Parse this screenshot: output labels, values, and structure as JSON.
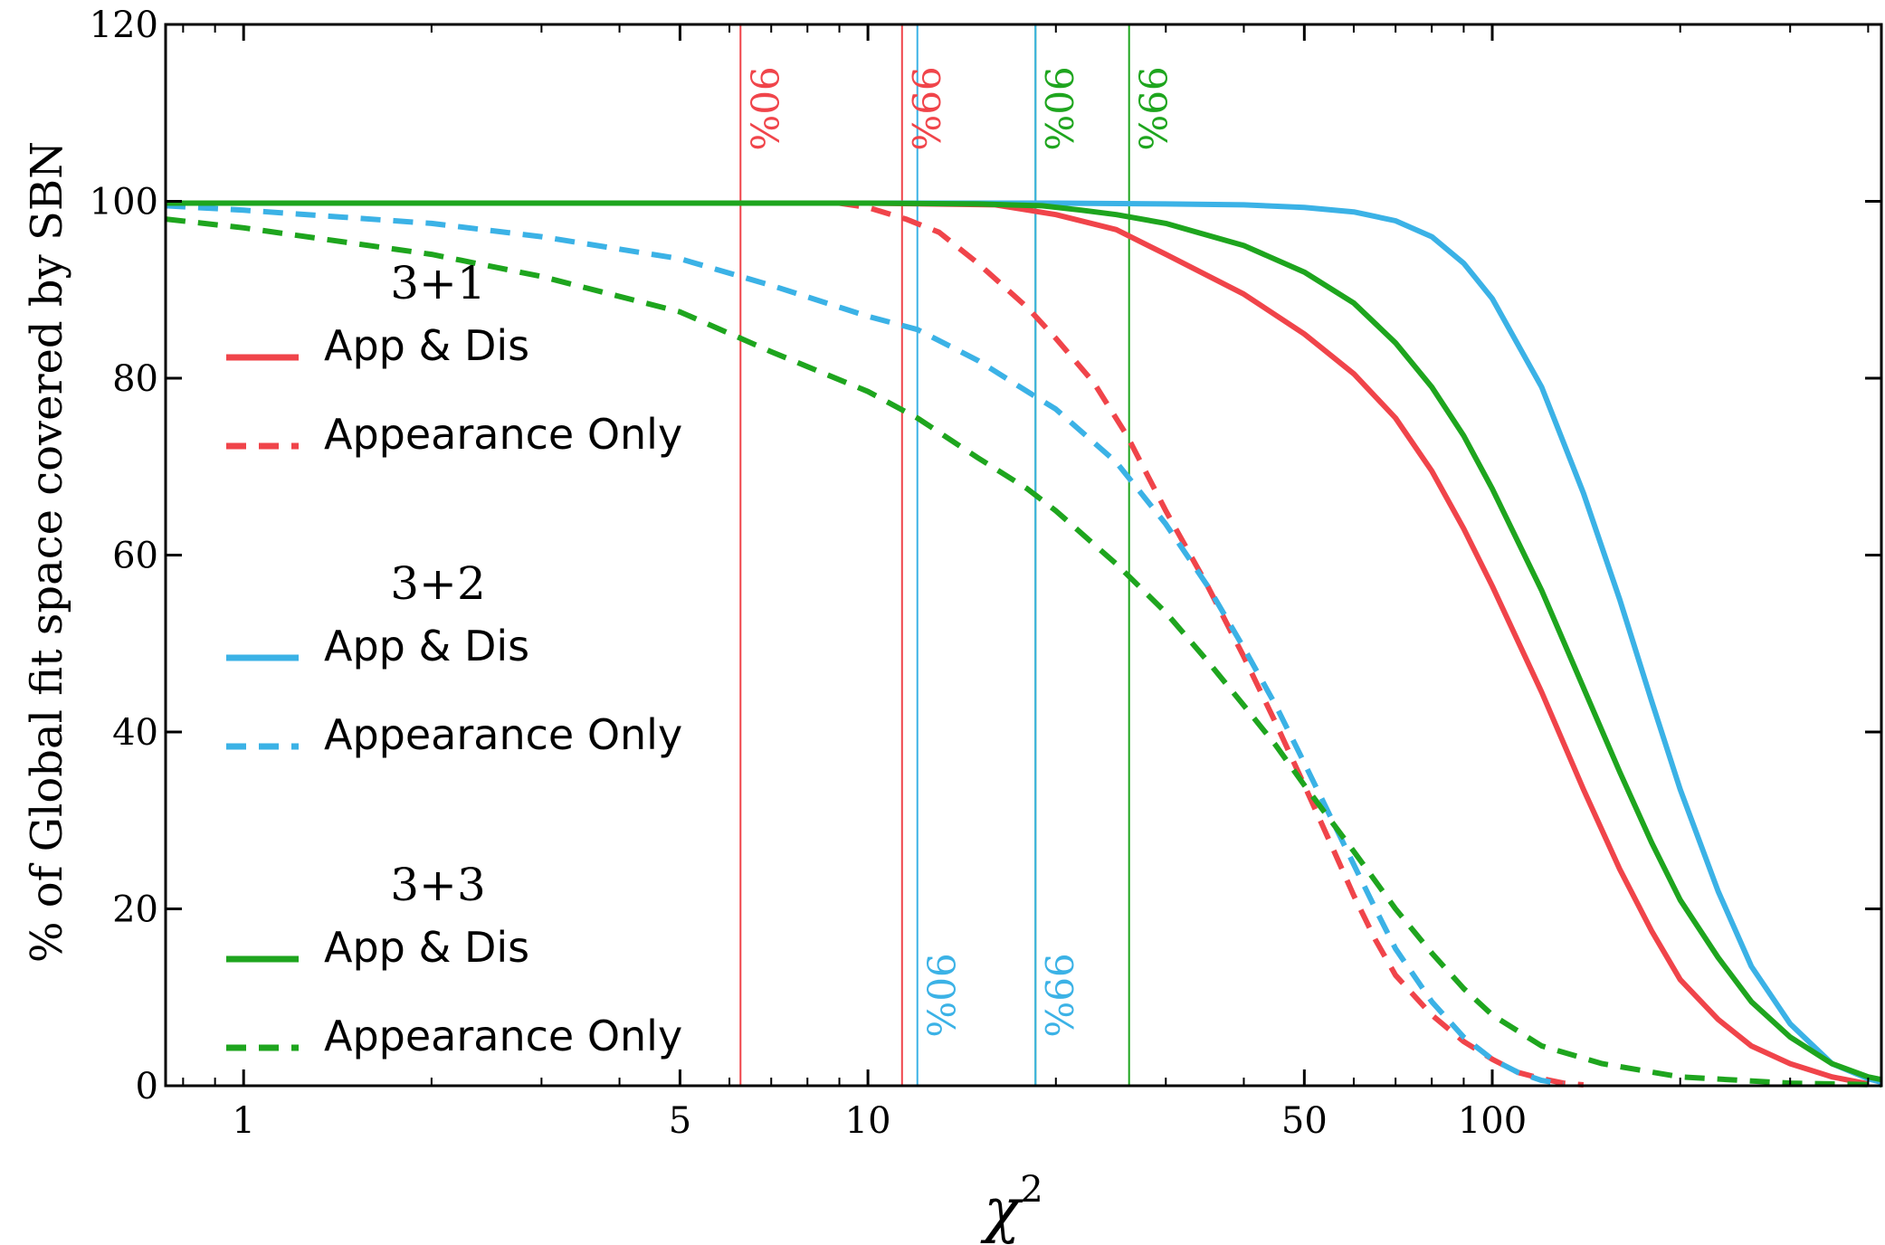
{
  "chart_data": {
    "type": "line",
    "xlabel": "χ",
    "xlabel_superscript": "2",
    "ylabel": "% of Global fit space covered by SBN",
    "xscale": "log",
    "xlim": [
      0.75,
      420
    ],
    "ylim": [
      0,
      120
    ],
    "x_ticks": [
      {
        "value": 1,
        "label": "1"
      },
      {
        "value": 5,
        "label": "5"
      },
      {
        "value": 10,
        "label": "10"
      },
      {
        "value": 50,
        "label": "50"
      },
      {
        "value": 100,
        "label": "100"
      }
    ],
    "y_ticks": [
      {
        "value": 0,
        "label": "0"
      },
      {
        "value": 20,
        "label": "20"
      },
      {
        "value": 40,
        "label": "40"
      },
      {
        "value": 60,
        "label": "60"
      },
      {
        "value": 80,
        "label": "80"
      },
      {
        "value": 100,
        "label": "100"
      },
      {
        "value": 120,
        "label": "120"
      }
    ],
    "colors": {
      "red": "#f0444a",
      "blue": "#3bb2e6",
      "green": "#1ea51e"
    },
    "series": [
      {
        "name": "App & Dis",
        "group": "3+1",
        "color": "red",
        "dash": "solid",
        "points": [
          [
            0.75,
            99.8
          ],
          [
            5,
            99.8
          ],
          [
            10,
            99.8
          ],
          [
            16,
            99.6
          ],
          [
            20,
            98.5
          ],
          [
            25,
            96.8
          ],
          [
            30,
            94.0
          ],
          [
            40,
            89.5
          ],
          [
            50,
            85.0
          ],
          [
            60,
            80.5
          ],
          [
            70,
            75.5
          ],
          [
            80,
            69.5
          ],
          [
            90,
            63.0
          ],
          [
            100,
            56.5
          ],
          [
            120,
            44.5
          ],
          [
            140,
            33.5
          ],
          [
            160,
            24.5
          ],
          [
            180,
            17.5
          ],
          [
            200,
            12.0
          ],
          [
            230,
            7.5
          ],
          [
            260,
            4.5
          ],
          [
            300,
            2.5
          ],
          [
            350,
            1.0
          ],
          [
            400,
            0.2
          ]
        ]
      },
      {
        "name": "Appearance Only",
        "group": "3+1",
        "color": "red",
        "dash": "dashed",
        "points": [
          [
            9,
            99.8
          ],
          [
            10,
            99.3
          ],
          [
            11.5,
            98.0
          ],
          [
            13,
            96.5
          ],
          [
            15,
            93.0
          ],
          [
            18,
            88.0
          ],
          [
            20,
            84.5
          ],
          [
            23,
            79.5
          ],
          [
            26,
            73.5
          ],
          [
            30,
            65.0
          ],
          [
            35,
            56.5
          ],
          [
            40,
            48.5
          ],
          [
            45,
            41.0
          ],
          [
            50,
            34.0
          ],
          [
            55,
            27.5
          ],
          [
            60,
            21.5
          ],
          [
            65,
            16.5
          ],
          [
            70,
            12.5
          ],
          [
            80,
            8.0
          ],
          [
            90,
            5.0
          ],
          [
            100,
            3.0
          ],
          [
            110,
            1.5
          ],
          [
            120,
            0.8
          ],
          [
            130,
            0.3
          ],
          [
            140,
            0.1
          ]
        ]
      },
      {
        "name": "App & Dis",
        "group": "3+2",
        "color": "blue",
        "dash": "solid",
        "points": [
          [
            0.75,
            99.8
          ],
          [
            10,
            99.8
          ],
          [
            20,
            99.8
          ],
          [
            30,
            99.7
          ],
          [
            40,
            99.6
          ],
          [
            50,
            99.3
          ],
          [
            60,
            98.8
          ],
          [
            70,
            97.8
          ],
          [
            80,
            96.0
          ],
          [
            90,
            93.0
          ],
          [
            100,
            89.0
          ],
          [
            120,
            79.0
          ],
          [
            140,
            67.0
          ],
          [
            160,
            55.0
          ],
          [
            180,
            43.5
          ],
          [
            200,
            33.5
          ],
          [
            230,
            22.0
          ],
          [
            260,
            13.5
          ],
          [
            300,
            7.0
          ],
          [
            350,
            2.5
          ],
          [
            400,
            0.8
          ],
          [
            420,
            0.4
          ]
        ]
      },
      {
        "name": "Appearance Only",
        "group": "3+2",
        "color": "blue",
        "dash": "dashed",
        "points": [
          [
            0.75,
            99.5
          ],
          [
            1,
            99.0
          ],
          [
            2,
            97.5
          ],
          [
            3,
            96.0
          ],
          [
            5,
            93.5
          ],
          [
            7,
            90.5
          ],
          [
            10,
            87.0
          ],
          [
            12,
            85.5
          ],
          [
            15,
            82.0
          ],
          [
            18,
            78.5
          ],
          [
            20,
            76.5
          ],
          [
            25,
            70.5
          ],
          [
            30,
            63.5
          ],
          [
            35,
            56.5
          ],
          [
            40,
            49.5
          ],
          [
            45,
            43.0
          ],
          [
            50,
            36.5
          ],
          [
            55,
            30.5
          ],
          [
            60,
            25.0
          ],
          [
            65,
            20.0
          ],
          [
            70,
            15.5
          ],
          [
            80,
            9.5
          ],
          [
            90,
            5.5
          ],
          [
            100,
            3.0
          ],
          [
            110,
            1.5
          ],
          [
            120,
            0.6
          ],
          [
            130,
            0.2
          ]
        ]
      },
      {
        "name": "App & Dis",
        "group": "3+3",
        "color": "green",
        "dash": "solid",
        "points": [
          [
            0.75,
            99.8
          ],
          [
            10,
            99.8
          ],
          [
            15,
            99.7
          ],
          [
            19,
            99.5
          ],
          [
            22,
            99.0
          ],
          [
            25,
            98.5
          ],
          [
            30,
            97.5
          ],
          [
            40,
            95.0
          ],
          [
            50,
            92.0
          ],
          [
            60,
            88.5
          ],
          [
            70,
            84.0
          ],
          [
            80,
            79.0
          ],
          [
            90,
            73.5
          ],
          [
            100,
            67.5
          ],
          [
            120,
            56.0
          ],
          [
            140,
            45.0
          ],
          [
            160,
            35.5
          ],
          [
            180,
            27.5
          ],
          [
            200,
            21.0
          ],
          [
            230,
            14.5
          ],
          [
            260,
            9.5
          ],
          [
            300,
            5.5
          ],
          [
            350,
            2.5
          ],
          [
            400,
            1.0
          ],
          [
            420,
            0.7
          ]
        ]
      },
      {
        "name": "Appearance Only",
        "group": "3+3",
        "color": "green",
        "dash": "dashed",
        "points": [
          [
            0.75,
            98.0
          ],
          [
            1,
            97.0
          ],
          [
            2,
            94.0
          ],
          [
            3,
            91.5
          ],
          [
            5,
            87.5
          ],
          [
            7,
            83.0
          ],
          [
            10,
            78.5
          ],
          [
            12,
            75.5
          ],
          [
            15,
            71.0
          ],
          [
            18,
            67.5
          ],
          [
            20,
            65.0
          ],
          [
            25,
            59.0
          ],
          [
            30,
            53.5
          ],
          [
            35,
            48.0
          ],
          [
            40,
            43.0
          ],
          [
            45,
            38.5
          ],
          [
            50,
            34.0
          ],
          [
            60,
            26.5
          ],
          [
            70,
            20.0
          ],
          [
            80,
            15.0
          ],
          [
            90,
            11.0
          ],
          [
            100,
            8.0
          ],
          [
            120,
            4.5
          ],
          [
            150,
            2.5
          ],
          [
            200,
            1.0
          ],
          [
            300,
            0.3
          ],
          [
            420,
            0.1
          ]
        ]
      }
    ],
    "vertical_lines": [
      {
        "x": 6.25,
        "color": "red",
        "label": "90%",
        "label_position": "top"
      },
      {
        "x": 11.34,
        "color": "red",
        "label": "99%",
        "label_position": "top"
      },
      {
        "x": 12.0,
        "color": "blue",
        "label": "90%",
        "label_position": "bottom"
      },
      {
        "x": 18.55,
        "color": "green",
        "label": "90%",
        "label_position": "top"
      },
      {
        "x": 18.55,
        "color": "blue",
        "label": "99%",
        "label_position": "bottom"
      },
      {
        "x": 26.2,
        "color": "green",
        "label": "99%",
        "label_position": "top"
      }
    ],
    "legend": {
      "placement": "center-left",
      "groups": [
        {
          "title": "3+1",
          "entries": [
            {
              "label": "App & Dis",
              "color": "red",
              "dash": "solid"
            },
            {
              "label": "Appearance Only",
              "color": "red",
              "dash": "dashed"
            }
          ]
        },
        {
          "title": "3+2",
          "entries": [
            {
              "label": "App & Dis",
              "color": "blue",
              "dash": "solid"
            },
            {
              "label": "Appearance Only",
              "color": "blue",
              "dash": "dashed"
            }
          ]
        },
        {
          "title": "3+3",
          "entries": [
            {
              "label": "App & Dis",
              "color": "green",
              "dash": "solid"
            },
            {
              "label": "Appearance Only",
              "color": "green",
              "dash": "dashed"
            }
          ]
        }
      ]
    }
  }
}
